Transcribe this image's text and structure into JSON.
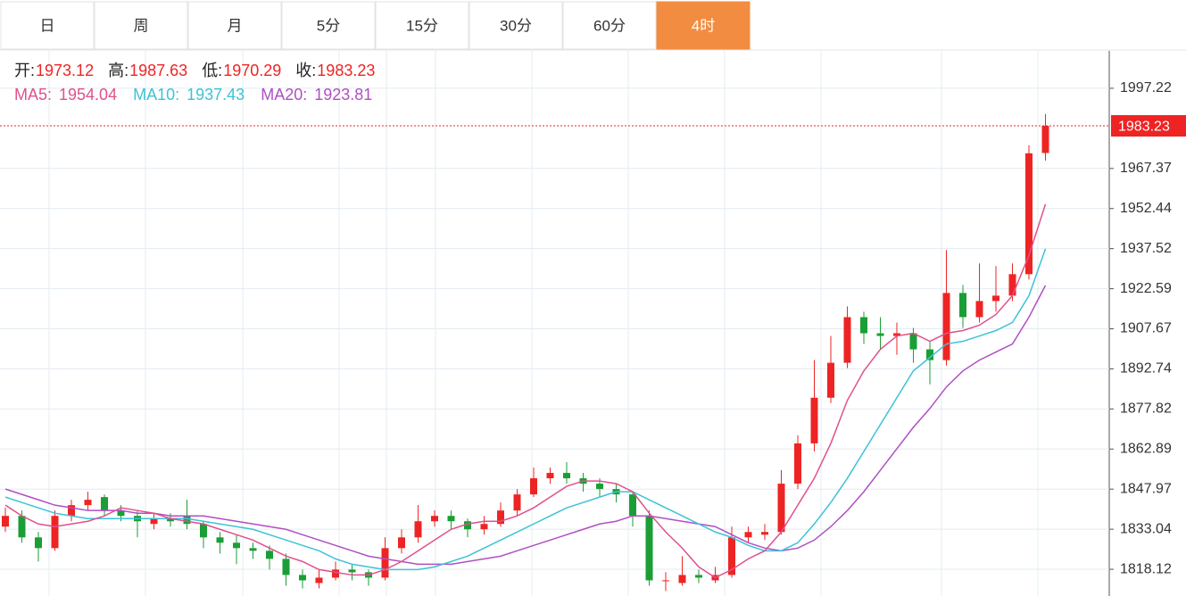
{
  "chart_data": {
    "type": "candlestick",
    "tabs": [
      "日",
      "周",
      "月",
      "5分",
      "15分",
      "30分",
      "60分",
      "4时"
    ],
    "active_tab": 7,
    "info_labels": [
      "开:",
      "高:",
      "低:",
      "收:"
    ],
    "ma_labels": [
      "MA5:",
      "MA10:",
      "MA20:"
    ],
    "colors": {
      "up": "#ee2424",
      "down": "#1a9e35",
      "ma5": "#e0508c",
      "ma10": "#3cc2d8",
      "ma20": "#b04fc4",
      "active_tab": "#f28c40"
    },
    "ylim": [
      1808.17,
      2011.15
    ],
    "yticks": [
      1997.22,
      1967.37,
      1952.44,
      1937.52,
      1922.59,
      1907.67,
      1892.74,
      1877.82,
      1862.89,
      1847.97,
      1833.04,
      1818.12
    ],
    "grid": true,
    "candles": [
      [
        1834,
        1841,
        1832,
        1838
      ],
      [
        1838,
        1840,
        1828,
        1830
      ],
      [
        1830,
        1832,
        1821,
        1826
      ],
      [
        1826,
        1840,
        1825,
        1838
      ],
      [
        1838,
        1844,
        1836,
        1842
      ],
      [
        1842,
        1847,
        1840,
        1844
      ],
      [
        1845,
        1846,
        1838,
        1840
      ],
      [
        1840,
        1842,
        1836,
        1838
      ],
      [
        1838,
        1840,
        1830,
        1836
      ],
      [
        1835,
        1839,
        1833,
        1837
      ],
      [
        1837,
        1839,
        1834,
        1836
      ],
      [
        1838,
        1844,
        1833,
        1835
      ],
      [
        1835,
        1836,
        1826,
        1830
      ],
      [
        1830,
        1832,
        1824,
        1828
      ],
      [
        1828,
        1831,
        1820,
        1826
      ],
      [
        1826,
        1828,
        1822,
        1825
      ],
      [
        1825,
        1827,
        1818,
        1822
      ],
      [
        1822,
        1824,
        1812,
        1816
      ],
      [
        1816,
        1818,
        1811,
        1814
      ],
      [
        1813,
        1818,
        1811,
        1815
      ],
      [
        1815,
        1821,
        1814,
        1818
      ],
      [
        1818,
        1820,
        1814,
        1817
      ],
      [
        1817,
        1818,
        1812,
        1815
      ],
      [
        1815,
        1830,
        1814,
        1826
      ],
      [
        1826,
        1833,
        1824,
        1830
      ],
      [
        1830,
        1842,
        1828,
        1836
      ],
      [
        1836,
        1840,
        1834,
        1838
      ],
      [
        1838,
        1840,
        1833,
        1836
      ],
      [
        1836,
        1837,
        1830,
        1833
      ],
      [
        1833,
        1838,
        1831,
        1835
      ],
      [
        1835,
        1843,
        1834,
        1840
      ],
      [
        1840,
        1848,
        1838,
        1846
      ],
      [
        1846,
        1856,
        1845,
        1852
      ],
      [
        1852,
        1856,
        1850,
        1854
      ],
      [
        1854,
        1858,
        1850,
        1852
      ],
      [
        1852,
        1854,
        1847,
        1850
      ],
      [
        1850,
        1852,
        1845,
        1848
      ],
      [
        1848,
        1850,
        1843,
        1846
      ],
      [
        1846,
        1847,
        1834,
        1838
      ],
      [
        1838,
        1840,
        1812,
        1814
      ],
      [
        1814,
        1817,
        1810,
        1814
      ],
      [
        1813,
        1823,
        1812,
        1816
      ],
      [
        1816,
        1818,
        1813,
        1815
      ],
      [
        1814,
        1819,
        1813,
        1816
      ],
      [
        1816,
        1834,
        1815,
        1830
      ],
      [
        1830,
        1834,
        1828,
        1832
      ],
      [
        1831,
        1835,
        1829,
        1832
      ],
      [
        1832,
        1855,
        1831,
        1850
      ],
      [
        1850,
        1868,
        1848,
        1865
      ],
      [
        1865,
        1896,
        1862,
        1882
      ],
      [
        1882,
        1905,
        1880,
        1895
      ],
      [
        1895,
        1916,
        1893,
        1912
      ],
      [
        1912,
        1914,
        1902,
        1906
      ],
      [
        1906,
        1912,
        1900,
        1905
      ],
      [
        1905,
        1910,
        1898,
        1906
      ],
      [
        1906,
        1908,
        1895,
        1900
      ],
      [
        1900,
        1903,
        1887,
        1896
      ],
      [
        1896,
        1937,
        1894,
        1921
      ],
      [
        1921,
        1924,
        1908,
        1912
      ],
      [
        1912,
        1932,
        1910,
        1918
      ],
      [
        1918,
        1931,
        1914,
        1920
      ],
      [
        1920,
        1932,
        1918,
        1928
      ],
      [
        1928,
        1976,
        1926,
        1973
      ],
      [
        1973.12,
        1987.63,
        1970.29,
        1983.23
      ]
    ],
    "ma5": [
      1842,
      1838,
      1835,
      1834,
      1835,
      1836,
      1838,
      1841,
      1840,
      1839,
      1837,
      1836,
      1835,
      1833,
      1831,
      1829,
      1826,
      1823,
      1821,
      1818,
      1817,
      1816,
      1816,
      1818,
      1821,
      1825,
      1829,
      1833,
      1835,
      1836,
      1836,
      1838,
      1841,
      1845,
      1849,
      1851,
      1851,
      1850,
      1847,
      1839,
      1832,
      1826,
      1819,
      1815,
      1818,
      1822,
      1825,
      1832,
      1842,
      1852,
      1865,
      1881,
      1892,
      1900,
      1905,
      1906,
      1903,
      1906,
      1907,
      1909,
      1913,
      1920,
      1935,
      1954.04
    ],
    "ma10": [
      1845,
      1843,
      1841,
      1839,
      1838,
      1837,
      1837,
      1837,
      1837,
      1837,
      1837,
      1837,
      1836,
      1835,
      1834,
      1833,
      1831,
      1829,
      1827,
      1825,
      1822,
      1820,
      1819,
      1818,
      1818,
      1818,
      1819,
      1821,
      1823,
      1826,
      1829,
      1832,
      1835,
      1838,
      1841,
      1843,
      1845,
      1847,
      1847,
      1844,
      1841,
      1838,
      1835,
      1832,
      1830,
      1827,
      1825,
      1825,
      1828,
      1835,
      1843,
      1852,
      1862,
      1872,
      1882,
      1892,
      1897,
      1902,
      1903,
      1905,
      1907,
      1910,
      1920,
      1937.43
    ],
    "ma20": [
      1848,
      1846,
      1844,
      1842,
      1841,
      1840,
      1840,
      1840,
      1839,
      1839,
      1838,
      1838,
      1838,
      1837,
      1836,
      1835,
      1834,
      1833,
      1831,
      1829,
      1827,
      1825,
      1823,
      1822,
      1821,
      1820,
      1820,
      1820,
      1821,
      1822,
      1823,
      1825,
      1827,
      1829,
      1831,
      1833,
      1835,
      1836,
      1838,
      1838,
      1837,
      1836,
      1835,
      1834,
      1831,
      1828,
      1826,
      1825,
      1826,
      1829,
      1834,
      1840,
      1847,
      1855,
      1863,
      1871,
      1878,
      1886,
      1892,
      1896,
      1899,
      1902,
      1912,
      1923.81
    ]
  }
}
